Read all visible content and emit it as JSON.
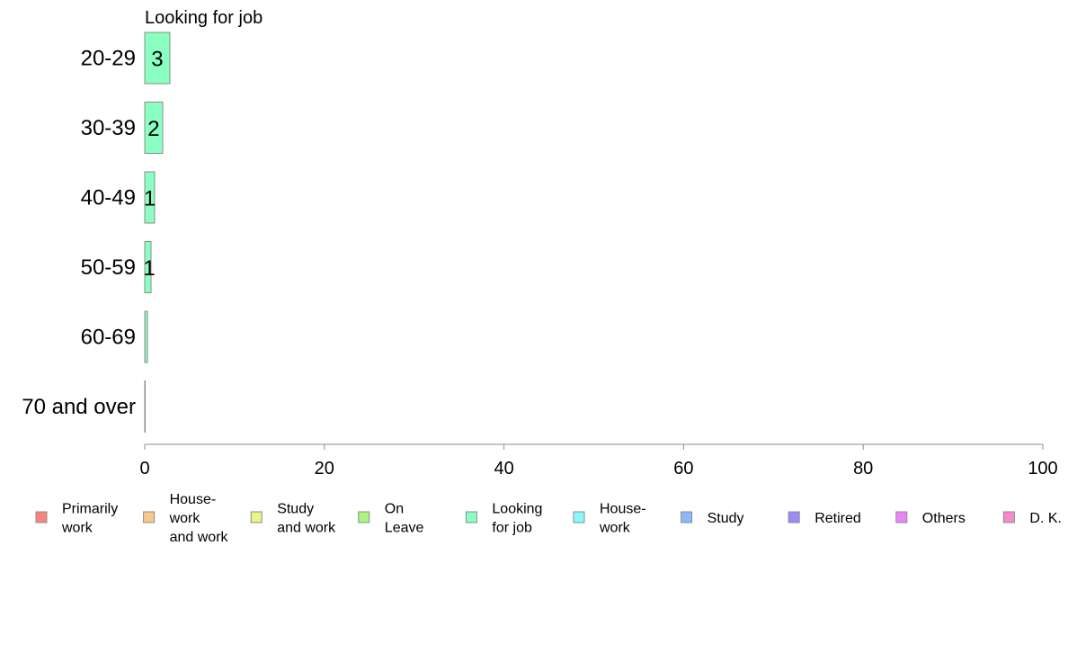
{
  "chart_data": {
    "type": "bar",
    "orientation": "horizontal",
    "title": "Looking for job",
    "xlabel": "",
    "ylabel": "",
    "categories": [
      "20-29",
      "30-39",
      "40-49",
      "50-59",
      "60-69",
      "70 and over"
    ],
    "series": [
      {
        "name": "Looking for job",
        "color": "#8affc1",
        "values": [
          2.8,
          2.0,
          1.1,
          0.7,
          0.3,
          0.05
        ],
        "data_labels": [
          "3",
          "2",
          "1",
          "1",
          "",
          ""
        ]
      }
    ],
    "xlim": [
      0,
      100
    ],
    "xticks": [
      0,
      20,
      40,
      60,
      80,
      100
    ],
    "grid": false,
    "legend": {
      "placement": "bottom",
      "entries": [
        {
          "lines": [
            "Primarily",
            "work"
          ],
          "color": "#f8847c"
        },
        {
          "lines": [
            "House-",
            "work",
            "and work"
          ],
          "color": "#f8c98a"
        },
        {
          "lines": [
            "Study",
            "and work"
          ],
          "color": "#ebf585"
        },
        {
          "lines": [
            "On",
            "Leave"
          ],
          "color": "#a9f57f"
        },
        {
          "lines": [
            "Looking",
            "for job"
          ],
          "color": "#8affc1"
        },
        {
          "lines": [
            "House-",
            "work"
          ],
          "color": "#8af7fb"
        },
        {
          "lines": [
            "Study"
          ],
          "color": "#8ab8f8"
        },
        {
          "lines": [
            "Retired"
          ],
          "color": "#9c8af8"
        },
        {
          "lines": [
            "Others"
          ],
          "color": "#ec84f8"
        },
        {
          "lines": [
            "D. K."
          ],
          "color": "#f889cc"
        }
      ]
    }
  }
}
